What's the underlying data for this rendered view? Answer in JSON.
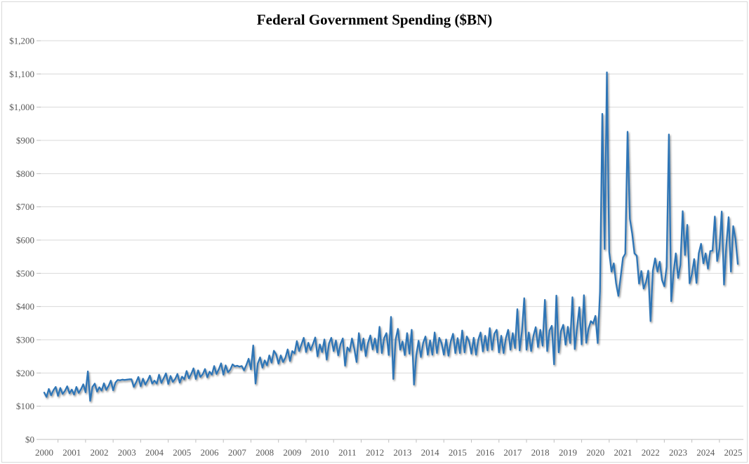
{
  "chart_data": {
    "type": "line",
    "title": "Federal Government Spending ($BN)",
    "series_name": "Federal Government Spending",
    "unit": "$BN",
    "frequency": "monthly",
    "x_start": "2000-01",
    "x_end": "2025-03",
    "xlabel": "",
    "ylabel": "",
    "ylim": [
      0,
      1200
    ],
    "y_tick_interval": 100,
    "y_tick_labels": [
      "$0",
      "$100",
      "$200",
      "$300",
      "$400",
      "$500",
      "$600",
      "$700",
      "$800",
      "$900",
      "$1,000",
      "$1,100",
      "$1,200"
    ],
    "x_tick_labels": [
      "2000",
      "2001",
      "2002",
      "2003",
      "2004",
      "2005",
      "2006",
      "2007",
      "2008",
      "2009",
      "2010",
      "2011",
      "2012",
      "2013",
      "2014",
      "2015",
      "2016",
      "2017",
      "2018",
      "2019",
      "2020",
      "2021",
      "2022",
      "2023",
      "2024",
      "2025"
    ],
    "grid": "horizontal",
    "legend": "none",
    "line_color": "#2e75b6",
    "line_shadow": true,
    "gridline_color": "#d9d9d9",
    "axis_line_color": "#bfbfbf",
    "axis_text_color": "#595959",
    "notable_points": {
      "2020-04": 980,
      "2020-06": 1105,
      "2021-03": 926,
      "2022-09": 918,
      "2025-03": 528
    },
    "values_by_year": {
      "2000": [
        141,
        128,
        152,
        133,
        148,
        158,
        131,
        155,
        137,
        146,
        160,
        139
      ],
      "2001": [
        150,
        135,
        158,
        140,
        151,
        166,
        142,
        205,
        116,
        158,
        168,
        144
      ],
      "2002": [
        157,
        147,
        169,
        149,
        161,
        177,
        148,
        171,
        179,
        178,
        180,
        179
      ],
      "2003": [
        180,
        181,
        181,
        158,
        172,
        188,
        160,
        183,
        165,
        177,
        192,
        168
      ],
      "2004": [
        177,
        168,
        195,
        170,
        184,
        199,
        167,
        191,
        173,
        182,
        197,
        171
      ],
      "2005": [
        189,
        181,
        206,
        184,
        197,
        214,
        182,
        208,
        188,
        196,
        212,
        187
      ],
      "2006": [
        204,
        195,
        221,
        197,
        211,
        229,
        195,
        223,
        202,
        210,
        226,
        220
      ],
      "2007": [
        222,
        219,
        221,
        208,
        224,
        243,
        211,
        283,
        168,
        229,
        247,
        216
      ],
      "2008": [
        238,
        223,
        253,
        231,
        267,
        256,
        228,
        253,
        233,
        246,
        271,
        236
      ],
      "2009": [
        266,
        259,
        296,
        266,
        286,
        306,
        263,
        291,
        269,
        287,
        307,
        250
      ],
      "2010": [
        286,
        263,
        301,
        240,
        289,
        306,
        266,
        298,
        253,
        287,
        304,
        222
      ],
      "2011": [
        277,
        266,
        304,
        273,
        233,
        320,
        269,
        304,
        251,
        291,
        313,
        271
      ],
      "2012": [
        304,
        262,
        339,
        260,
        305,
        320,
        254,
        369,
        182,
        301,
        333,
        270
      ],
      "2013": [
        295,
        254,
        320,
        258,
        330,
        165,
        254,
        297,
        248,
        291,
        310,
        255
      ],
      "2014": [
        298,
        255,
        322,
        260,
        306,
        290,
        255,
        301,
        252,
        295,
        318,
        260
      ],
      "2015": [
        305,
        260,
        328,
        262,
        310,
        295,
        258,
        306,
        255,
        300,
        322,
        265
      ],
      "2016": [
        312,
        268,
        335,
        270,
        318,
        330,
        262,
        312,
        260,
        305,
        330,
        270
      ],
      "2017": [
        320,
        275,
        392,
        268,
        325,
        425,
        270,
        322,
        266,
        312,
        338,
        278
      ],
      "2018": [
        330,
        282,
        420,
        266,
        328,
        342,
        226,
        433,
        262,
        326,
        345,
        285
      ],
      "2019": [
        339,
        290,
        428,
        272,
        336,
        398,
        286,
        434,
        291,
        333,
        356,
        349
      ],
      "2020": [
        372,
        290,
        445,
        980,
        573,
        1105,
        565,
        505,
        530,
        470,
        432,
        490
      ],
      "2021": [
        547,
        559,
        926,
        664,
        620,
        560,
        553,
        469,
        507,
        454,
        473,
        508
      ],
      "2022": [
        356,
        508,
        545,
        505,
        535,
        480,
        461,
        520,
        918,
        416,
        501,
        560
      ],
      "2023": [
        486,
        525,
        687,
        555,
        646,
        470,
        497,
        543,
        471,
        560,
        589,
        530
      ],
      "2024": [
        560,
        514,
        567,
        568,
        671,
        537,
        574,
        686,
        466,
        584,
        669,
        505
      ],
      "2025": [
        642,
        603,
        528
      ]
    }
  }
}
